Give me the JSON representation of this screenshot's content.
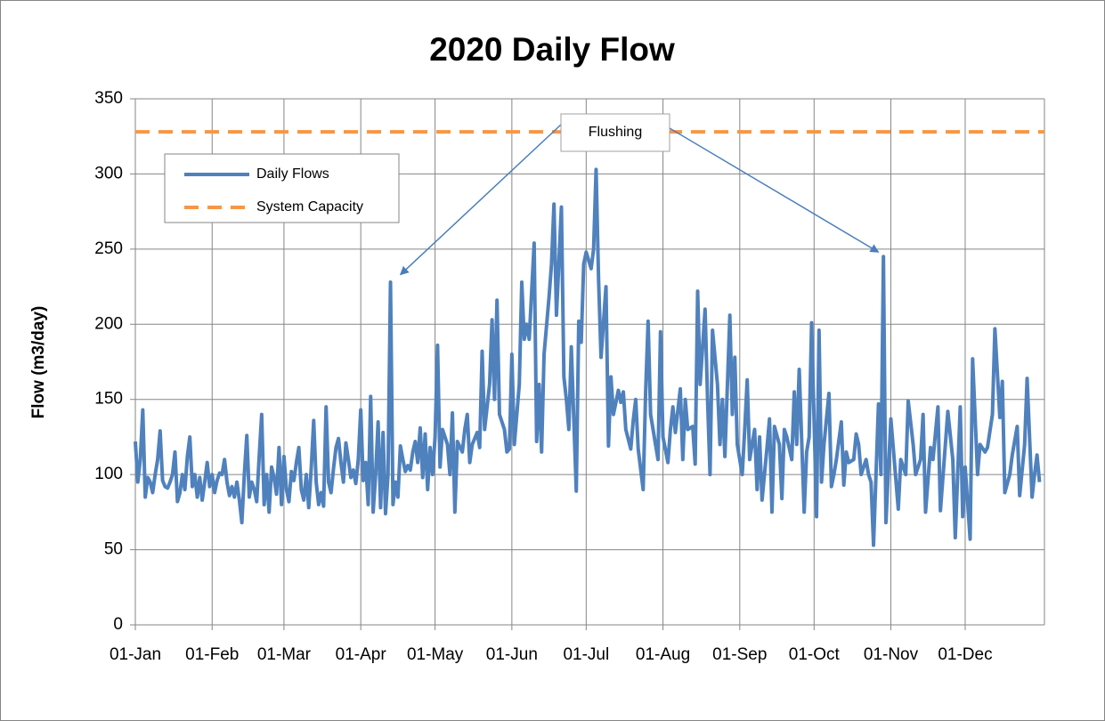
{
  "chart_data": {
    "type": "line",
    "title": "2020 Daily Flow",
    "y_label": "Flow (m3/day)",
    "xlim": [
      0,
      367
    ],
    "xticks": [
      {
        "value": 0,
        "label": "01-Jan"
      },
      {
        "value": 31,
        "label": "01-Feb"
      },
      {
        "value": 60,
        "label": "01-Mar"
      },
      {
        "value": 91,
        "label": "01-Apr"
      },
      {
        "value": 121,
        "label": "01-May"
      },
      {
        "value": 152,
        "label": "01-Jun"
      },
      {
        "value": 182,
        "label": "01-Jul"
      },
      {
        "value": 213,
        "label": "01-Aug"
      },
      {
        "value": 244,
        "label": "01-Sep"
      },
      {
        "value": 274,
        "label": "01-Oct"
      },
      {
        "value": 305,
        "label": "01-Nov"
      },
      {
        "value": 335,
        "label": "01-Dec"
      }
    ],
    "ylim": [
      0,
      350
    ],
    "yticks": [
      0,
      50,
      100,
      150,
      200,
      250,
      300,
      350
    ],
    "grid": true,
    "x": [
      0,
      1,
      2,
      3,
      4,
      5,
      6,
      7,
      8,
      9,
      10,
      11,
      12,
      13,
      14,
      15,
      16,
      17,
      18,
      19,
      20,
      21,
      22,
      23,
      24,
      25,
      26,
      27,
      28,
      29,
      30,
      31,
      32,
      33,
      34,
      35,
      36,
      37,
      38,
      39,
      40,
      41,
      42,
      43,
      44,
      45,
      46,
      47,
      48,
      49,
      50,
      51,
      52,
      53,
      54,
      55,
      56,
      57,
      58,
      59,
      60,
      61,
      62,
      63,
      64,
      65,
      66,
      67,
      68,
      69,
      70,
      71,
      72,
      73,
      74,
      75,
      76,
      77,
      78,
      79,
      80,
      81,
      82,
      83,
      84,
      85,
      86,
      87,
      88,
      89,
      90,
      91,
      92,
      93,
      94,
      95,
      96,
      97,
      98,
      99,
      100,
      101,
      102,
      103,
      104,
      105,
      106,
      107,
      108,
      109,
      110,
      111,
      112,
      113,
      114,
      115,
      116,
      117,
      118,
      119,
      120,
      121,
      122,
      123,
      124,
      126,
      127,
      128,
      129,
      130,
      132,
      133,
      134,
      135,
      136,
      138,
      139,
      140,
      141,
      143,
      144,
      145,
      146,
      147,
      149,
      150,
      151,
      152,
      153,
      155,
      156,
      157,
      158,
      159,
      161,
      162,
      163,
      164,
      165,
      167,
      168,
      169,
      170,
      172,
      173,
      174,
      175,
      176,
      178,
      179,
      180,
      181,
      182,
      184,
      185,
      186,
      187,
      188,
      190,
      191,
      192,
      193,
      195,
      196,
      197,
      198,
      200,
      201,
      202,
      203,
      205,
      206,
      207,
      208,
      210,
      211,
      212,
      213,
      215,
      216,
      217,
      218,
      220,
      221,
      222,
      223,
      225,
      226,
      227,
      228,
      230,
      231,
      232,
      233,
      235,
      236,
      237,
      238,
      240,
      241,
      242,
      243,
      245,
      246,
      247,
      248,
      250,
      251,
      252,
      253,
      255,
      256,
      257,
      258,
      260,
      261,
      262,
      263,
      265,
      266,
      267,
      268,
      270,
      271,
      272,
      273,
      275,
      276,
      277,
      278,
      280,
      281,
      282,
      283,
      285,
      286,
      287,
      288,
      290,
      291,
      292,
      293,
      295,
      296,
      297,
      298,
      300,
      301,
      302,
      303,
      305,
      306,
      308,
      309,
      311,
      312,
      314,
      315,
      317,
      318,
      319,
      321,
      322,
      324,
      325,
      327,
      328,
      330,
      331,
      333,
      334,
      335,
      337,
      338,
      340,
      341,
      343,
      344,
      346,
      347,
      349,
      350,
      351,
      353,
      354,
      356,
      357,
      359,
      360,
      362,
      363,
      364,
      365
    ],
    "series": [
      {
        "name": "Daily Flows",
        "color": "#4f81bd",
        "values": [
          122,
          95,
          110,
          143,
          85,
          98,
          95,
          88,
          100,
          110,
          129,
          96,
          92,
          91,
          95,
          100,
          115,
          82,
          88,
          100,
          90,
          112,
          125,
          92,
          100,
          85,
          98,
          83,
          95,
          108,
          92,
          100,
          88,
          96,
          101,
          100,
          110,
          95,
          86,
          92,
          85,
          95,
          83,
          68,
          100,
          126,
          85,
          95,
          90,
          82,
          112,
          140,
          80,
          100,
          75,
          105,
          98,
          87,
          118,
          80,
          112,
          90,
          82,
          102,
          96,
          108,
          118,
          90,
          83,
          100,
          78,
          104,
          136,
          95,
          80,
          88,
          79,
          145,
          95,
          88,
          104,
          118,
          124,
          108,
          95,
          121,
          110,
          98,
          103,
          94,
          110,
          143,
          96,
          108,
          80,
          152,
          75,
          100,
          135,
          78,
          128,
          74,
          100,
          228,
          80,
          95,
          85,
          119,
          110,
          102,
          106,
          103,
          115,
          122,
          108,
          131,
          98,
          127,
          90,
          118,
          100,
          125,
          186,
          105,
          130,
          120,
          100,
          141,
          75,
          122,
          115,
          130,
          140,
          108,
          120,
          128,
          118,
          182,
          130,
          160,
          203,
          150,
          216,
          140,
          130,
          115,
          117,
          180,
          120,
          160,
          228,
          190,
          200,
          190,
          254,
          122,
          160,
          115,
          180,
          218,
          240,
          280,
          206,
          278,
          165,
          150,
          130,
          185,
          89,
          202,
          188,
          240,
          248,
          237,
          250,
          303,
          230,
          178,
          225,
          119,
          165,
          140,
          156,
          148,
          155,
          130,
          117,
          136,
          150,
          117,
          90,
          155,
          202,
          140,
          120,
          110,
          195,
          125,
          108,
          130,
          145,
          128,
          157,
          110,
          150,
          130,
          132,
          107,
          222,
          160,
          210,
          150,
          100,
          196,
          160,
          120,
          150,
          112,
          206,
          140,
          178,
          120,
          100,
          130,
          163,
          110,
          130,
          90,
          125,
          83,
          118,
          137,
          75,
          132,
          120,
          84,
          130,
          125,
          110,
          155,
          120,
          170,
          75,
          115,
          125,
          201,
          72,
          196,
          95,
          120,
          154,
          92,
          100,
          110,
          135,
          93,
          115,
          108,
          110,
          127,
          120,
          100,
          110,
          100,
          95,
          53,
          147,
          100,
          245,
          68,
          137,
          117,
          77,
          110,
          100,
          149,
          120,
          100,
          110,
          140,
          75,
          118,
          110,
          145,
          76,
          120,
          142,
          110,
          58,
          145,
          72,
          105,
          57,
          177,
          100,
          120,
          115,
          118,
          140,
          197,
          138,
          162,
          88,
          100,
          113,
          132,
          86,
          120,
          164,
          85,
          100,
          113,
          95
        ]
      }
    ],
    "reference_lines": [
      {
        "name": "System Capacity",
        "value": 328,
        "color": "#f79646"
      }
    ],
    "annotation": {
      "text": "Flushing",
      "targets": [
        {
          "x": 107,
          "y": 233
        },
        {
          "x": 300,
          "y": 248
        }
      ]
    }
  }
}
